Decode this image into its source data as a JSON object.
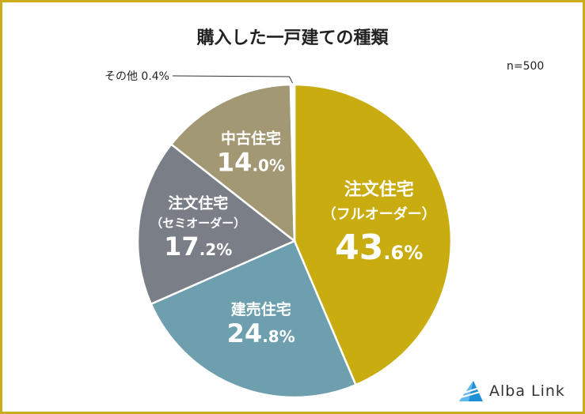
{
  "chart_data": {
    "type": "pie",
    "title": "購入した一戸建ての種類",
    "sample_size_label": "n=500",
    "slices": [
      {
        "label_lines": [
          "注文住宅",
          "（フルオーダー）"
        ],
        "value": 43.6,
        "int": "43",
        "dec": ".6%",
        "color": "#c9ad10"
      },
      {
        "label_lines": [
          "建売住宅"
        ],
        "value": 24.8,
        "int": "24",
        "dec": ".8%",
        "color": "#6e9fae"
      },
      {
        "label_lines": [
          "注文住宅",
          "（セミオーダー）"
        ],
        "value": 17.2,
        "int": "17",
        "dec": ".2%",
        "color": "#7a7f87"
      },
      {
        "label_lines": [
          "中古住宅"
        ],
        "value": 14.0,
        "int": "14",
        "dec": ".0%",
        "color": "#a39874"
      },
      {
        "label_lines": [
          "その他"
        ],
        "value": 0.4,
        "external_label": "その他 0.4%",
        "color": "#ffffff"
      }
    ]
  },
  "brand": {
    "name": "Alba Link"
  }
}
